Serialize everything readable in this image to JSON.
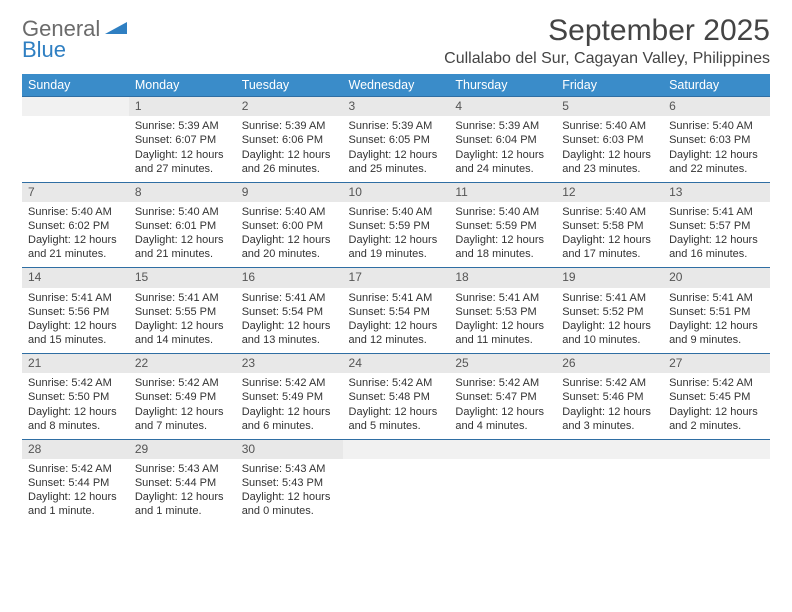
{
  "logo": {
    "general": "General",
    "blue": "Blue"
  },
  "title": "September 2025",
  "location": "Cullalabo del Sur, Cagayan Valley, Philippines",
  "colors": {
    "header_bg": "#3a8cc9",
    "header_text": "#ffffff",
    "week_divider": "#2f6ea3",
    "daynum_bg": "#e8e8e8",
    "text": "#333333",
    "logo_gray": "#6b6b6b",
    "logo_blue": "#2f7fc2"
  },
  "weekdays": [
    "Sunday",
    "Monday",
    "Tuesday",
    "Wednesday",
    "Thursday",
    "Friday",
    "Saturday"
  ],
  "weeks": [
    [
      null,
      {
        "n": "1",
        "sr": "5:39 AM",
        "ss": "6:07 PM",
        "dl": "12 hours and 27 minutes."
      },
      {
        "n": "2",
        "sr": "5:39 AM",
        "ss": "6:06 PM",
        "dl": "12 hours and 26 minutes."
      },
      {
        "n": "3",
        "sr": "5:39 AM",
        "ss": "6:05 PM",
        "dl": "12 hours and 25 minutes."
      },
      {
        "n": "4",
        "sr": "5:39 AM",
        "ss": "6:04 PM",
        "dl": "12 hours and 24 minutes."
      },
      {
        "n": "5",
        "sr": "5:40 AM",
        "ss": "6:03 PM",
        "dl": "12 hours and 23 minutes."
      },
      {
        "n": "6",
        "sr": "5:40 AM",
        "ss": "6:03 PM",
        "dl": "12 hours and 22 minutes."
      }
    ],
    [
      {
        "n": "7",
        "sr": "5:40 AM",
        "ss": "6:02 PM",
        "dl": "12 hours and 21 minutes."
      },
      {
        "n": "8",
        "sr": "5:40 AM",
        "ss": "6:01 PM",
        "dl": "12 hours and 21 minutes."
      },
      {
        "n": "9",
        "sr": "5:40 AM",
        "ss": "6:00 PM",
        "dl": "12 hours and 20 minutes."
      },
      {
        "n": "10",
        "sr": "5:40 AM",
        "ss": "5:59 PM",
        "dl": "12 hours and 19 minutes."
      },
      {
        "n": "11",
        "sr": "5:40 AM",
        "ss": "5:59 PM",
        "dl": "12 hours and 18 minutes."
      },
      {
        "n": "12",
        "sr": "5:40 AM",
        "ss": "5:58 PM",
        "dl": "12 hours and 17 minutes."
      },
      {
        "n": "13",
        "sr": "5:41 AM",
        "ss": "5:57 PM",
        "dl": "12 hours and 16 minutes."
      }
    ],
    [
      {
        "n": "14",
        "sr": "5:41 AM",
        "ss": "5:56 PM",
        "dl": "12 hours and 15 minutes."
      },
      {
        "n": "15",
        "sr": "5:41 AM",
        "ss": "5:55 PM",
        "dl": "12 hours and 14 minutes."
      },
      {
        "n": "16",
        "sr": "5:41 AM",
        "ss": "5:54 PM",
        "dl": "12 hours and 13 minutes."
      },
      {
        "n": "17",
        "sr": "5:41 AM",
        "ss": "5:54 PM",
        "dl": "12 hours and 12 minutes."
      },
      {
        "n": "18",
        "sr": "5:41 AM",
        "ss": "5:53 PM",
        "dl": "12 hours and 11 minutes."
      },
      {
        "n": "19",
        "sr": "5:41 AM",
        "ss": "5:52 PM",
        "dl": "12 hours and 10 minutes."
      },
      {
        "n": "20",
        "sr": "5:41 AM",
        "ss": "5:51 PM",
        "dl": "12 hours and 9 minutes."
      }
    ],
    [
      {
        "n": "21",
        "sr": "5:42 AM",
        "ss": "5:50 PM",
        "dl": "12 hours and 8 minutes."
      },
      {
        "n": "22",
        "sr": "5:42 AM",
        "ss": "5:49 PM",
        "dl": "12 hours and 7 minutes."
      },
      {
        "n": "23",
        "sr": "5:42 AM",
        "ss": "5:49 PM",
        "dl": "12 hours and 6 minutes."
      },
      {
        "n": "24",
        "sr": "5:42 AM",
        "ss": "5:48 PM",
        "dl": "12 hours and 5 minutes."
      },
      {
        "n": "25",
        "sr": "5:42 AM",
        "ss": "5:47 PM",
        "dl": "12 hours and 4 minutes."
      },
      {
        "n": "26",
        "sr": "5:42 AM",
        "ss": "5:46 PM",
        "dl": "12 hours and 3 minutes."
      },
      {
        "n": "27",
        "sr": "5:42 AM",
        "ss": "5:45 PM",
        "dl": "12 hours and 2 minutes."
      }
    ],
    [
      {
        "n": "28",
        "sr": "5:42 AM",
        "ss": "5:44 PM",
        "dl": "12 hours and 1 minute."
      },
      {
        "n": "29",
        "sr": "5:43 AM",
        "ss": "5:44 PM",
        "dl": "12 hours and 1 minute."
      },
      {
        "n": "30",
        "sr": "5:43 AM",
        "ss": "5:43 PM",
        "dl": "12 hours and 0 minutes."
      },
      null,
      null,
      null,
      null
    ]
  ],
  "labels": {
    "sunrise": "Sunrise:",
    "sunset": "Sunset:",
    "daylight": "Daylight:"
  }
}
